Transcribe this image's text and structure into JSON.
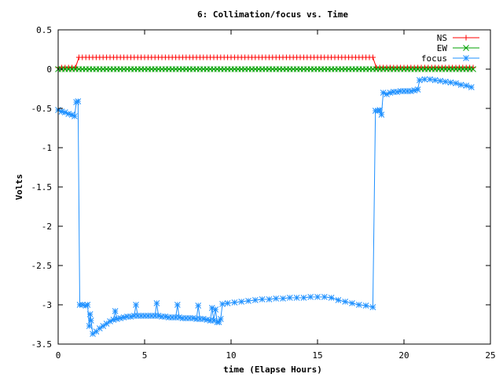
{
  "chart_data": {
    "type": "line",
    "title": "6: Collimation/focus vs. Time",
    "xlabel": "time (Elapse Hours)",
    "ylabel": "Volts",
    "xlim": [
      0,
      25
    ],
    "ylim": [
      -3.5,
      0.5
    ],
    "xticks": [
      0,
      5,
      10,
      15,
      20,
      25
    ],
    "xtick_labels": [
      "0",
      "5",
      "10",
      "15",
      "20",
      "25"
    ],
    "yticks": [
      0.5,
      0,
      -0.5,
      -1,
      -1.5,
      -2,
      -2.5,
      -3,
      -3.5
    ],
    "ytick_labels": [
      "0.5",
      "0",
      "-0.5",
      "-1",
      "-1.5",
      "-2",
      "-2.5",
      "-3",
      "-3.5"
    ],
    "grid": false,
    "legend_position": "top-right",
    "series": [
      {
        "name": "NS",
        "color": "#ff0000",
        "marker": "plus",
        "x_range": [
          0,
          24
        ],
        "step": 0.2,
        "segments": [
          {
            "x": [
              0,
              1.2
            ],
            "y": 0.02
          },
          {
            "x": [
              1.2,
              18.3
            ],
            "y": 0.15
          },
          {
            "x": [
              18.3,
              24
            ],
            "y": 0.02
          }
        ]
      },
      {
        "name": "EW",
        "color": "#00a000",
        "marker": "cross",
        "x_range": [
          0,
          24
        ],
        "step": 0.2,
        "value": 0.0
      },
      {
        "name": "focus",
        "color": "#1e90ff",
        "marker": "star",
        "points": [
          [
            0.0,
            -0.52
          ],
          [
            0.2,
            -0.54
          ],
          [
            0.4,
            -0.55
          ],
          [
            0.6,
            -0.57
          ],
          [
            0.8,
            -0.58
          ],
          [
            0.95,
            -0.6
          ],
          [
            1.05,
            -0.42
          ],
          [
            1.15,
            -0.41
          ],
          [
            1.25,
            -3.0
          ],
          [
            1.4,
            -3.0
          ],
          [
            1.6,
            -3.01
          ],
          [
            1.7,
            -3.0
          ],
          [
            1.8,
            -3.27
          ],
          [
            1.85,
            -3.12
          ],
          [
            1.9,
            -3.2
          ],
          [
            2.0,
            -3.37
          ],
          [
            2.2,
            -3.34
          ],
          [
            2.4,
            -3.3
          ],
          [
            2.6,
            -3.27
          ],
          [
            2.8,
            -3.24
          ],
          [
            3.0,
            -3.21
          ],
          [
            3.2,
            -3.19
          ],
          [
            3.3,
            -3.08
          ],
          [
            3.4,
            -3.18
          ],
          [
            3.6,
            -3.17
          ],
          [
            3.8,
            -3.16
          ],
          [
            4.0,
            -3.15
          ],
          [
            4.2,
            -3.15
          ],
          [
            4.4,
            -3.14
          ],
          [
            4.5,
            -3.0
          ],
          [
            4.6,
            -3.14
          ],
          [
            4.8,
            -3.14
          ],
          [
            5.0,
            -3.14
          ],
          [
            5.2,
            -3.14
          ],
          [
            5.4,
            -3.14
          ],
          [
            5.6,
            -3.14
          ],
          [
            5.7,
            -2.98
          ],
          [
            5.8,
            -3.14
          ],
          [
            6.0,
            -3.15
          ],
          [
            6.2,
            -3.15
          ],
          [
            6.4,
            -3.16
          ],
          [
            6.6,
            -3.16
          ],
          [
            6.8,
            -3.16
          ],
          [
            6.9,
            -3.0
          ],
          [
            7.0,
            -3.16
          ],
          [
            7.2,
            -3.17
          ],
          [
            7.4,
            -3.17
          ],
          [
            7.6,
            -3.17
          ],
          [
            7.8,
            -3.17
          ],
          [
            8.0,
            -3.18
          ],
          [
            8.1,
            -3.01
          ],
          [
            8.2,
            -3.18
          ],
          [
            8.4,
            -3.18
          ],
          [
            8.6,
            -3.19
          ],
          [
            8.8,
            -3.2
          ],
          [
            8.9,
            -3.04
          ],
          [
            9.0,
            -3.2
          ],
          [
            9.1,
            -3.06
          ],
          [
            9.2,
            -3.22
          ],
          [
            9.3,
            -3.22
          ],
          [
            9.4,
            -3.18
          ],
          [
            9.5,
            -2.99
          ],
          [
            9.8,
            -2.98
          ],
          [
            10.2,
            -2.97
          ],
          [
            10.6,
            -2.96
          ],
          [
            11.0,
            -2.95
          ],
          [
            11.4,
            -2.94
          ],
          [
            11.8,
            -2.93
          ],
          [
            12.2,
            -2.93
          ],
          [
            12.6,
            -2.92
          ],
          [
            13.0,
            -2.92
          ],
          [
            13.4,
            -2.91
          ],
          [
            13.8,
            -2.91
          ],
          [
            14.2,
            -2.91
          ],
          [
            14.6,
            -2.9
          ],
          [
            15.0,
            -2.9
          ],
          [
            15.4,
            -2.9
          ],
          [
            15.8,
            -2.91
          ],
          [
            16.2,
            -2.94
          ],
          [
            16.6,
            -2.96
          ],
          [
            17.0,
            -2.98
          ],
          [
            17.4,
            -3.0
          ],
          [
            17.8,
            -3.01
          ],
          [
            18.2,
            -3.03
          ],
          [
            18.35,
            -0.53
          ],
          [
            18.5,
            -0.53
          ],
          [
            18.6,
            -0.52
          ],
          [
            18.7,
            -0.58
          ],
          [
            18.8,
            -0.3
          ],
          [
            19.0,
            -0.32
          ],
          [
            19.2,
            -0.3
          ],
          [
            19.4,
            -0.29
          ],
          [
            19.6,
            -0.29
          ],
          [
            19.8,
            -0.28
          ],
          [
            20.0,
            -0.28
          ],
          [
            20.2,
            -0.28
          ],
          [
            20.4,
            -0.28
          ],
          [
            20.6,
            -0.27
          ],
          [
            20.8,
            -0.26
          ],
          [
            20.9,
            -0.14
          ],
          [
            21.2,
            -0.13
          ],
          [
            21.5,
            -0.13
          ],
          [
            21.8,
            -0.14
          ],
          [
            22.1,
            -0.15
          ],
          [
            22.4,
            -0.16
          ],
          [
            22.7,
            -0.17
          ],
          [
            23.0,
            -0.18
          ],
          [
            23.3,
            -0.2
          ],
          [
            23.6,
            -0.21
          ],
          [
            23.9,
            -0.23
          ]
        ]
      }
    ]
  }
}
